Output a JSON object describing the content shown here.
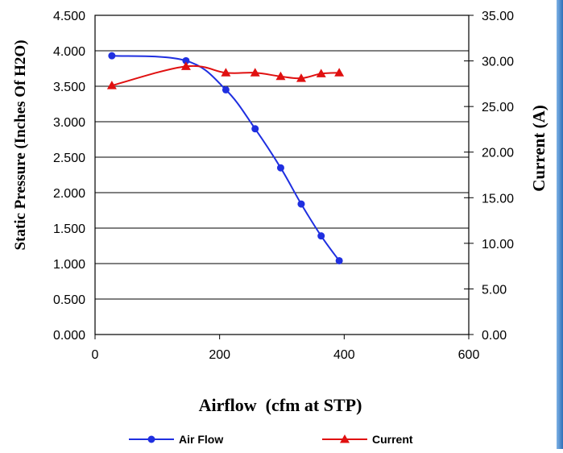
{
  "chart_data": {
    "type": "line",
    "title": "",
    "xlabel": "Airflow  (cfm at STP)",
    "ylabel": "Static Pressure (Inches Of H2O)",
    "y2label": "Current (A)",
    "xlim": [
      0,
      600
    ],
    "ylim": [
      0,
      4.5
    ],
    "y2lim": [
      0,
      35
    ],
    "xticks": [
      "0",
      "200",
      "400",
      "600"
    ],
    "yticks": [
      "0.000",
      "0.500",
      "1.000",
      "1.500",
      "2.000",
      "2.500",
      "3.000",
      "3.500",
      "4.000",
      "4.500"
    ],
    "y2ticks": [
      "0.00",
      "5.00",
      "10.00",
      "15.00",
      "20.00",
      "25.00",
      "30.00",
      "35.00"
    ],
    "grid": true,
    "legend": "bottom",
    "series": [
      {
        "name": "Air Flow",
        "axis": "left",
        "color": "#1f2fe0",
        "marker": "circle",
        "x": [
          27,
          146,
          210,
          257,
          298,
          331,
          363,
          392
        ],
        "y": [
          3.93,
          3.86,
          3.45,
          2.9,
          2.35,
          1.84,
          1.39,
          1.04
        ]
      },
      {
        "name": "Current",
        "axis": "right",
        "color": "#e01010",
        "marker": "triangle",
        "x": [
          27,
          146,
          210,
          257,
          298,
          331,
          363,
          392
        ],
        "y": [
          27.3,
          29.4,
          28.7,
          28.7,
          28.3,
          28.1,
          28.6,
          28.7
        ]
      }
    ]
  }
}
